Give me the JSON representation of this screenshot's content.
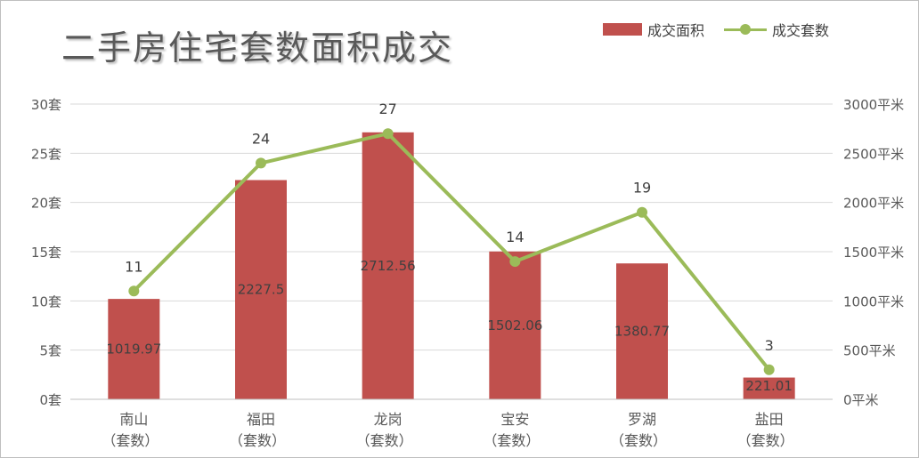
{
  "chart_data": {
    "type": "bar",
    "title": "二手房住宅套数面积成交",
    "categories": [
      "南山",
      "福田",
      "龙岗",
      "宝安",
      "罗湖",
      "盐田"
    ],
    "category_sublabel": "（套数）",
    "series": [
      {
        "name": "成交面积",
        "type": "bar",
        "axis": "right",
        "color": "#c0504d",
        "values": [
          1019.97,
          2227.5,
          2712.56,
          1502.06,
          1380.77,
          221.01
        ],
        "labels": [
          "1019.97",
          "2227.5",
          "2712.56",
          "1502.06",
          "1380.77",
          "221.01"
        ]
      },
      {
        "name": "成交套数",
        "type": "line",
        "axis": "left",
        "color": "#9bbb59",
        "values": [
          11,
          24,
          27,
          14,
          19,
          3
        ],
        "labels": [
          "11",
          "24",
          "27",
          "14",
          "19",
          "3"
        ]
      }
    ],
    "y_left": {
      "ylim": [
        0,
        30
      ],
      "ticks": [
        0,
        5,
        10,
        15,
        20,
        25,
        30
      ],
      "tick_labels": [
        "0套",
        "5套",
        "10套",
        "15套",
        "20套",
        "25套",
        "30套"
      ]
    },
    "y_right": {
      "ylim": [
        0,
        3000
      ],
      "ticks": [
        0,
        500,
        1000,
        1500,
        2000,
        2500,
        3000
      ],
      "tick_labels": [
        "0平米",
        "500平米",
        "1000平米",
        "1500平米",
        "2000平米",
        "2500平米",
        "3000平米"
      ]
    },
    "grid": true,
    "legend_position": "top-right"
  }
}
